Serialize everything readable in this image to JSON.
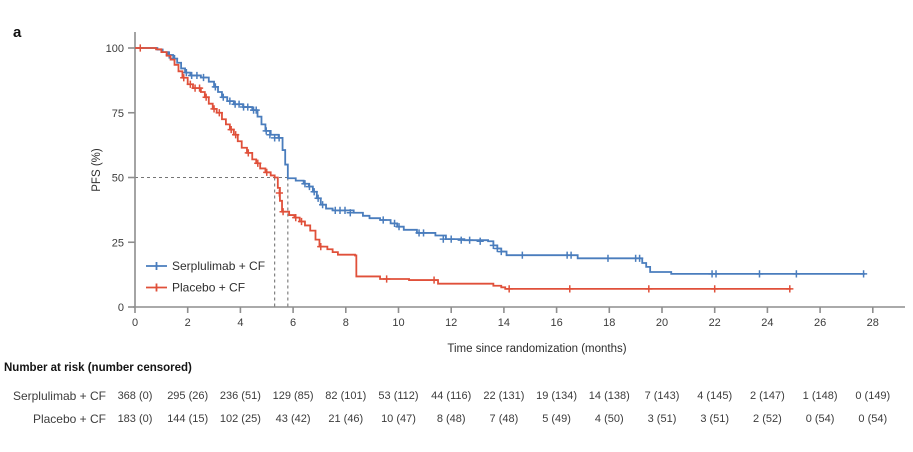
{
  "panel_label": "a",
  "colors": {
    "serplulimab": "#4a7dbd",
    "placebo": "#e0503a",
    "axis": "#8e8e8e",
    "dashed": "#757575",
    "text": "#3c3c3c"
  },
  "chart_data": {
    "type": "line",
    "subtype": "kaplan-meier-step",
    "title": "",
    "xlabel": "Time since randomization (months)",
    "ylabel": "PFS (%)",
    "xlim": [
      0,
      29
    ],
    "ylim": [
      0,
      100
    ],
    "xticks": [
      0,
      2,
      4,
      6,
      8,
      10,
      12,
      14,
      16,
      18,
      20,
      22,
      24,
      26,
      28
    ],
    "yticks": [
      0,
      25,
      50,
      75,
      100
    ],
    "grid": false,
    "legend_position": "inside-lower-left",
    "median_dashed_lines": {
      "y": 50,
      "x_values": [
        5.3,
        5.8
      ]
    },
    "series": [
      {
        "name": "Serplulimab + CF",
        "color": "#4a7dbd",
        "steps": [
          [
            0,
            100
          ],
          [
            0.85,
            99.4
          ],
          [
            1.05,
            98.4
          ],
          [
            1.25,
            97.3
          ],
          [
            1.45,
            95.9
          ],
          [
            1.6,
            94.3
          ],
          [
            1.75,
            92.1
          ],
          [
            1.9,
            90.5
          ],
          [
            2.1,
            89.4
          ],
          [
            2.5,
            88.6
          ],
          [
            2.8,
            87
          ],
          [
            3.0,
            85
          ],
          [
            3.15,
            83
          ],
          [
            3.3,
            81
          ],
          [
            3.5,
            79.5
          ],
          [
            3.75,
            78.3
          ],
          [
            4.1,
            77.2
          ],
          [
            4.45,
            76
          ],
          [
            4.65,
            73.5
          ],
          [
            4.8,
            70.5
          ],
          [
            4.95,
            68
          ],
          [
            5.15,
            66.5
          ],
          [
            5.45,
            65.3
          ],
          [
            5.6,
            60.6
          ],
          [
            5.7,
            55
          ],
          [
            5.8,
            49.7
          ],
          [
            6.1,
            48.8
          ],
          [
            6.4,
            47.6
          ],
          [
            6.6,
            46.5
          ],
          [
            6.75,
            44.5
          ],
          [
            6.9,
            42
          ],
          [
            7.05,
            39.5
          ],
          [
            7.25,
            38
          ],
          [
            7.5,
            37.3
          ],
          [
            8.3,
            36.4
          ],
          [
            8.65,
            35.2
          ],
          [
            8.9,
            34.3
          ],
          [
            9.3,
            33.6
          ],
          [
            9.7,
            32.3
          ],
          [
            9.95,
            31
          ],
          [
            10.2,
            29.8
          ],
          [
            10.7,
            28.6
          ],
          [
            11.4,
            27.6
          ],
          [
            11.8,
            26.2
          ],
          [
            12.5,
            25.8
          ],
          [
            13.4,
            25.4
          ],
          [
            13.6,
            23.8
          ],
          [
            13.75,
            22.6
          ],
          [
            13.9,
            21.4
          ],
          [
            14.1,
            20.0
          ],
          [
            16.8,
            18.8
          ],
          [
            19.25,
            17
          ],
          [
            19.4,
            15.5
          ],
          [
            19.55,
            13.5
          ],
          [
            20.35,
            12.8
          ],
          [
            27.7,
            12.8
          ]
        ],
        "censor_marks": [
          [
            1.3,
            97.3
          ],
          [
            1.5,
            95.9
          ],
          [
            1.95,
            90.5
          ],
          [
            2.15,
            89.4
          ],
          [
            2.35,
            89.4
          ],
          [
            2.6,
            88.6
          ],
          [
            3.05,
            85
          ],
          [
            3.35,
            81
          ],
          [
            3.6,
            79.5
          ],
          [
            3.8,
            78.3
          ],
          [
            3.95,
            78.3
          ],
          [
            4.12,
            77.2
          ],
          [
            4.28,
            77.2
          ],
          [
            4.5,
            76
          ],
          [
            4.6,
            76
          ],
          [
            4.98,
            68
          ],
          [
            5.12,
            66.5
          ],
          [
            5.3,
            65.3
          ],
          [
            5.47,
            65.3
          ],
          [
            6.45,
            47.6
          ],
          [
            6.62,
            46.5
          ],
          [
            6.8,
            44.5
          ],
          [
            6.95,
            42
          ],
          [
            7.12,
            39.5
          ],
          [
            7.6,
            37.3
          ],
          [
            7.78,
            37.3
          ],
          [
            7.97,
            37.3
          ],
          [
            8.17,
            36.4
          ],
          [
            9.42,
            33.6
          ],
          [
            9.85,
            32.3
          ],
          [
            10.02,
            31
          ],
          [
            10.78,
            28.6
          ],
          [
            10.95,
            28.6
          ],
          [
            11.7,
            26.2
          ],
          [
            12.0,
            26.2
          ],
          [
            12.38,
            25.8
          ],
          [
            12.7,
            25.8
          ],
          [
            13.1,
            25.4
          ],
          [
            13.6,
            23.8
          ],
          [
            13.75,
            22.6
          ],
          [
            13.9,
            21.4
          ],
          [
            14.7,
            20.0
          ],
          [
            16.4,
            20.0
          ],
          [
            16.55,
            20.0
          ],
          [
            17.95,
            18.8
          ],
          [
            19.0,
            18.8
          ],
          [
            19.15,
            18.8
          ],
          [
            21.9,
            12.8
          ],
          [
            22.05,
            12.8
          ],
          [
            23.7,
            12.8
          ],
          [
            25.1,
            12.8
          ],
          [
            27.65,
            12.8
          ]
        ]
      },
      {
        "name": "Placebo + CF",
        "color": "#e0503a",
        "steps": [
          [
            0,
            100
          ],
          [
            0.8,
            99.5
          ],
          [
            1.0,
            98.4
          ],
          [
            1.2,
            97
          ],
          [
            1.35,
            95.5
          ],
          [
            1.5,
            93.5
          ],
          [
            1.65,
            91
          ],
          [
            1.8,
            88.5
          ],
          [
            2.0,
            86
          ],
          [
            2.2,
            84.5
          ],
          [
            2.5,
            83
          ],
          [
            2.65,
            81
          ],
          [
            2.8,
            78.5
          ],
          [
            2.95,
            76.5
          ],
          [
            3.1,
            75
          ],
          [
            3.3,
            72.5
          ],
          [
            3.45,
            70.5
          ],
          [
            3.6,
            68.5
          ],
          [
            3.75,
            66.5
          ],
          [
            3.9,
            64
          ],
          [
            4.05,
            61.5
          ],
          [
            4.25,
            59.5
          ],
          [
            4.45,
            57
          ],
          [
            4.6,
            55.5
          ],
          [
            4.75,
            53.5
          ],
          [
            4.95,
            52
          ],
          [
            5.15,
            50.8
          ],
          [
            5.3,
            50
          ],
          [
            5.42,
            46
          ],
          [
            5.5,
            41
          ],
          [
            5.58,
            36.8
          ],
          [
            5.85,
            35.5
          ],
          [
            6.05,
            34.5
          ],
          [
            6.25,
            33
          ],
          [
            6.45,
            31.5
          ],
          [
            6.65,
            29.5
          ],
          [
            6.85,
            26
          ],
          [
            7.0,
            23.3
          ],
          [
            7.3,
            22.3
          ],
          [
            7.5,
            21.2
          ],
          [
            7.7,
            20.2
          ],
          [
            8.35,
            19.9
          ],
          [
            8.4,
            11.8
          ],
          [
            9.3,
            10.8
          ],
          [
            10.4,
            10.4
          ],
          [
            11.5,
            9.0
          ],
          [
            13.6,
            8.2
          ],
          [
            13.9,
            7.6
          ],
          [
            14.05,
            7.0
          ],
          [
            24.9,
            7.0
          ]
        ],
        "censor_marks": [
          [
            0.2,
            100
          ],
          [
            1.85,
            88.5
          ],
          [
            2.1,
            86
          ],
          [
            2.28,
            84.5
          ],
          [
            2.45,
            84.5
          ],
          [
            2.7,
            81
          ],
          [
            3.0,
            76.5
          ],
          [
            3.2,
            75
          ],
          [
            3.65,
            68.5
          ],
          [
            3.82,
            66.5
          ],
          [
            4.3,
            59.5
          ],
          [
            4.66,
            55.5
          ],
          [
            5.0,
            52
          ],
          [
            5.48,
            44
          ],
          [
            5.62,
            36.8
          ],
          [
            6.1,
            34.5
          ],
          [
            6.32,
            33
          ],
          [
            7.05,
            23.3
          ],
          [
            9.55,
            10.8
          ],
          [
            11.35,
            10.4
          ],
          [
            14.2,
            7.0
          ],
          [
            16.5,
            7.0
          ],
          [
            19.5,
            7.0
          ],
          [
            22.0,
            7.0
          ],
          [
            24.85,
            7.0
          ]
        ]
      }
    ]
  },
  "risk_table": {
    "title": "Number at risk (number censored)",
    "times": [
      0,
      2,
      4,
      6,
      8,
      10,
      12,
      14,
      16,
      18,
      20,
      22,
      24,
      26,
      28
    ],
    "rows": [
      {
        "label": "Serplulimab + CF",
        "values": [
          "368 (0)",
          "295 (26)",
          "236 (51)",
          "129 (85)",
          "82 (101)",
          "53 (112)",
          "44 (116)",
          "22 (131)",
          "19 (134)",
          "14 (138)",
          "7 (143)",
          "4 (145)",
          "2 (147)",
          "1 (148)",
          "0 (149)"
        ]
      },
      {
        "label": "Placebo + CF",
        "values": [
          "183 (0)",
          "144 (15)",
          "102 (25)",
          "43 (42)",
          "21 (46)",
          "10 (47)",
          "8 (48)",
          "7 (48)",
          "5 (49)",
          "4 (50)",
          "3 (51)",
          "3 (51)",
          "2 (52)",
          "0 (54)",
          "0 (54)"
        ]
      }
    ]
  }
}
